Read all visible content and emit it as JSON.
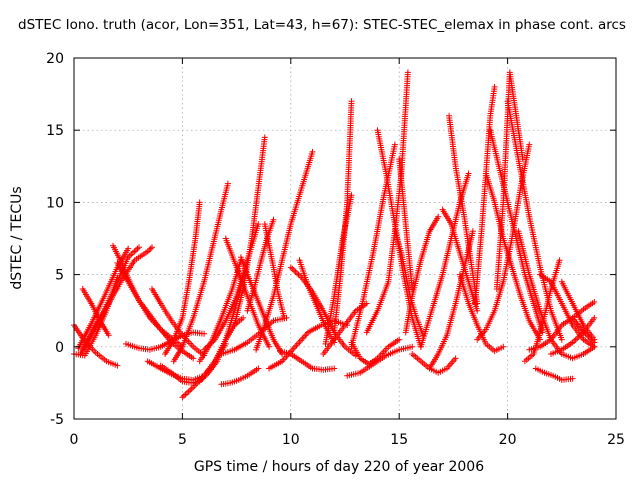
{
  "chart_data": {
    "type": "scatter",
    "title": "dSTEC Iono. truth (acor, Lon=351, Lat=43, h=67): STEC-STEC_elemax in phase cont. arcs",
    "xlabel": "GPS time / hours of day 220 of year 2006",
    "ylabel": "dSTEC  / TECUs",
    "xlim": [
      0,
      25
    ],
    "ylim": [
      -5,
      20
    ],
    "x_ticks": [
      0,
      5,
      10,
      15,
      20,
      25
    ],
    "y_ticks": [
      -5,
      0,
      5,
      10,
      15,
      20
    ],
    "grid": true,
    "marker": "+",
    "color": "#ff0000",
    "arcs": [
      {
        "x": [
          0.0,
          0.5,
          1.0,
          1.5,
          2.0
        ],
        "y": [
          1.5,
          0.4,
          -0.4,
          -1.0,
          -1.3
        ]
      },
      {
        "x": [
          0.0,
          0.5,
          1.0,
          1.5,
          2.0
        ],
        "y": [
          -0.5,
          -0.6,
          0.8,
          2.5,
          4.8
        ]
      },
      {
        "x": [
          0.2,
          0.8,
          1.4,
          2.0,
          2.5
        ],
        "y": [
          -0.1,
          1.6,
          3.5,
          5.5,
          6.8
        ]
      },
      {
        "x": [
          0.3,
          0.8,
          1.4,
          2.0,
          2.5,
          3.0
        ],
        "y": [
          -0.5,
          0.8,
          2.5,
          4.5,
          6.2,
          6.9
        ]
      },
      {
        "x": [
          0.4,
          1.0,
          1.6,
          2.2,
          2.8,
          3.4,
          3.6
        ],
        "y": [
          -0.2,
          1.5,
          3.0,
          4.6,
          6.0,
          6.6,
          6.9
        ]
      },
      {
        "x": [
          0.4,
          0.8,
          1.2,
          1.6
        ],
        "y": [
          4.0,
          3.0,
          1.8,
          0.8
        ]
      },
      {
        "x": [
          1.8,
          2.2,
          2.6,
          3.0,
          3.5,
          4.0,
          4.5,
          5.0,
          5.5
        ],
        "y": [
          7.0,
          5.8,
          4.4,
          3.2,
          2.2,
          1.2,
          0.3,
          -0.3,
          -0.8
        ]
      },
      {
        "x": [
          2.0,
          2.5,
          3.0,
          3.5,
          4.0,
          4.5,
          5.0
        ],
        "y": [
          5.8,
          4.5,
          3.2,
          2.0,
          1.2,
          0.6,
          0.0
        ]
      },
      {
        "x": [
          2.4,
          3.0,
          3.5,
          4.0,
          4.5,
          5.0,
          5.5,
          6.0
        ],
        "y": [
          0.2,
          -0.1,
          -0.2,
          0.0,
          0.4,
          0.8,
          1.0,
          0.9
        ]
      },
      {
        "x": [
          3.6,
          4.0,
          4.5,
          5.0,
          5.5,
          6.0
        ],
        "y": [
          4.0,
          3.0,
          1.8,
          0.8,
          0.0,
          -0.6
        ]
      },
      {
        "x": [
          3.4,
          4.0,
          4.5,
          5.0,
          5.5,
          6.0,
          6.5,
          7.0
        ],
        "y": [
          -1.0,
          -1.5,
          -1.9,
          -2.2,
          -2.3,
          -2.0,
          -1.0,
          0.2
        ]
      },
      {
        "x": [
          4.0,
          4.5,
          5.0,
          5.4,
          5.8,
          6.2,
          6.6,
          7.0,
          7.4,
          7.8
        ],
        "y": [
          -1.3,
          -1.8,
          -2.4,
          -2.5,
          -2.4,
          -1.8,
          -1.0,
          0.5,
          1.5,
          2.0
        ]
      },
      {
        "x": [
          4.2,
          4.6,
          5.0,
          5.3,
          5.6,
          5.8
        ],
        "y": [
          -0.5,
          0.5,
          2.0,
          4.5,
          7.5,
          10.0
        ]
      },
      {
        "x": [
          4.6,
          5.0,
          5.5,
          6.0,
          6.4,
          6.8,
          7.1
        ],
        "y": [
          -1.0,
          0.0,
          2.0,
          4.5,
          7.0,
          9.5,
          11.3
        ]
      },
      {
        "x": [
          5.0,
          5.5,
          6.0,
          6.5,
          7.0,
          7.5,
          8.0
        ],
        "y": [
          -3.5,
          -2.8,
          -2.0,
          -1.0,
          0.5,
          3.0,
          6.0
        ]
      },
      {
        "x": [
          5.8,
          6.3,
          6.8,
          7.3,
          7.7
        ],
        "y": [
          -1.0,
          0.2,
          2.0,
          4.0,
          6.0
        ]
      },
      {
        "x": [
          6.0,
          6.5,
          7.0,
          7.5,
          8.0,
          8.5
        ],
        "y": [
          -0.2,
          0.5,
          1.8,
          3.5,
          6.0,
          8.5
        ]
      },
      {
        "x": [
          6.8,
          7.2,
          7.6,
          8.0,
          8.5
        ],
        "y": [
          -2.6,
          -2.5,
          -2.3,
          -2.0,
          -1.5
        ]
      },
      {
        "x": [
          6.8,
          7.4,
          8.0,
          8.6,
          9.2,
          9.8
        ],
        "y": [
          -0.5,
          -0.2,
          0.3,
          1.0,
          1.8,
          2.0
        ]
      },
      {
        "x": [
          7.0,
          7.5,
          8.0,
          8.5,
          9.0
        ],
        "y": [
          7.5,
          5.5,
          3.5,
          1.5,
          0.0
        ]
      },
      {
        "x": [
          7.4,
          7.8,
          8.2,
          8.5,
          8.8
        ],
        "y": [
          1.5,
          4.0,
          7.5,
          11.0,
          14.5
        ]
      },
      {
        "x": [
          7.7,
          8.0,
          8.4,
          8.8,
          9.2,
          9.6
        ],
        "y": [
          6.2,
          5.0,
          3.5,
          2.0,
          0.5,
          -0.5
        ]
      },
      {
        "x": [
          8.0,
          8.3,
          8.6,
          8.9,
          9.2
        ],
        "y": [
          2.5,
          4.0,
          5.8,
          7.5,
          8.8
        ]
      },
      {
        "x": [
          8.4,
          8.8,
          9.2,
          9.6,
          10.0,
          10.5,
          11.0
        ],
        "y": [
          -0.2,
          1.5,
          3.5,
          6.0,
          8.5,
          11.0,
          13.5
        ]
      },
      {
        "x": [
          8.8,
          9.0,
          9.2,
          9.4,
          9.7
        ],
        "y": [
          8.5,
          7.0,
          5.5,
          3.8,
          2.0
        ]
      },
      {
        "x": [
          9.5,
          10.0,
          10.5,
          11.0,
          11.5,
          12.0
        ],
        "y": [
          -0.3,
          -0.5,
          -1.0,
          -1.5,
          -1.6,
          -1.5
        ]
      },
      {
        "x": [
          9.0,
          9.6,
          10.2,
          10.8,
          11.4,
          12.0,
          12.6
        ],
        "y": [
          -1.5,
          -1.0,
          0.0,
          1.0,
          1.5,
          1.8,
          1.5
        ]
      },
      {
        "x": [
          10.0,
          10.5,
          11.0,
          11.5,
          12.0,
          12.5,
          13.0
        ],
        "y": [
          5.5,
          4.8,
          3.8,
          2.5,
          1.0,
          0.0,
          -0.6
        ]
      },
      {
        "x": [
          10.4,
          10.8,
          11.2,
          11.6,
          12.0
        ],
        "y": [
          6.0,
          4.2,
          2.8,
          1.4,
          0.3
        ]
      },
      {
        "x": [
          11.5,
          12.0,
          12.5,
          13.0,
          13.5
        ],
        "y": [
          -0.5,
          0.5,
          1.5,
          2.5,
          3.0
        ]
      },
      {
        "x": [
          11.6,
          12.0,
          12.4,
          12.8
        ],
        "y": [
          0.2,
          3.5,
          7.5,
          10.5
        ]
      },
      {
        "x": [
          12.0,
          12.3,
          12.6,
          12.8
        ],
        "y": [
          1.0,
          5.0,
          10.0,
          17.0
        ]
      },
      {
        "x": [
          12.8,
          13.2,
          13.6,
          14.0,
          14.5,
          15.0
        ],
        "y": [
          0.3,
          -0.8,
          -1.2,
          -0.8,
          0.0,
          0.5
        ]
      },
      {
        "x": [
          12.6,
          13.2,
          13.8,
          14.4,
          15.0,
          15.6
        ],
        "y": [
          -2.0,
          -1.8,
          -1.2,
          -0.6,
          -0.2,
          0.0
        ]
      },
      {
        "x": [
          12.8,
          13.3,
          13.8,
          14.3,
          14.8
        ],
        "y": [
          0.0,
          3.0,
          6.5,
          10.5,
          14.0
        ]
      },
      {
        "x": [
          13.5,
          14.0,
          14.5,
          14.8,
          15.1,
          15.4
        ],
        "y": [
          1.0,
          2.5,
          4.5,
          8.0,
          12.0,
          19.0
        ]
      },
      {
        "x": [
          14.0,
          14.4,
          14.8,
          15.2,
          15.6,
          16.0
        ],
        "y": [
          15.0,
          12.0,
          8.5,
          5.0,
          2.0,
          0.0
        ]
      },
      {
        "x": [
          14.8,
          15.1,
          15.3,
          15.5,
          15.8,
          16.1
        ],
        "y": [
          8.0,
          6.5,
          5.0,
          3.5,
          2.0,
          0.8
        ]
      },
      {
        "x": [
          15.0,
          15.2,
          15.4,
          15.6
        ],
        "y": [
          13.0,
          10.0,
          7.0,
          4.0
        ]
      },
      {
        "x": [
          15.3,
          15.6,
          16.0,
          16.4,
          16.8
        ],
        "y": [
          1.0,
          3.5,
          6.0,
          8.0,
          9.0
        ]
      },
      {
        "x": [
          15.6,
          16.0,
          16.4,
          16.8,
          17.2,
          17.6
        ],
        "y": [
          -0.5,
          -1.0,
          -1.5,
          -1.8,
          -1.5,
          -0.8
        ]
      },
      {
        "x": [
          16.0,
          16.3,
          16.6,
          17.0,
          17.4,
          17.8,
          18.2
        ],
        "y": [
          0.0,
          1.5,
          3.0,
          5.0,
          7.5,
          10.0,
          12.0
        ]
      },
      {
        "x": [
          16.4,
          16.8,
          17.2,
          17.6,
          18.0,
          18.4
        ],
        "y": [
          -1.5,
          -0.5,
          0.8,
          3.0,
          5.5,
          8.0
        ]
      },
      {
        "x": [
          17.0,
          17.4,
          17.8,
          18.2,
          18.6
        ],
        "y": [
          9.5,
          8.5,
          6.5,
          4.5,
          2.5
        ]
      },
      {
        "x": [
          17.3,
          17.6,
          18.0,
          18.3,
          18.6
        ],
        "y": [
          16.0,
          12.5,
          9.0,
          6.0,
          3.0
        ]
      },
      {
        "x": [
          17.8,
          18.2,
          18.6,
          19.0,
          19.4,
          19.8
        ],
        "y": [
          5.0,
          3.0,
          1.5,
          0.2,
          -0.3,
          0.0
        ]
      },
      {
        "x": [
          18.5,
          18.8,
          19.0,
          19.2,
          19.4
        ],
        "y": [
          3.0,
          8.0,
          12.0,
          16.0,
          18.0
        ]
      },
      {
        "x": [
          18.6,
          19.0,
          19.4,
          19.8,
          20.2,
          20.6,
          21.0
        ],
        "y": [
          0.5,
          1.2,
          2.5,
          4.5,
          7.5,
          11.0,
          14.0
        ]
      },
      {
        "x": [
          19.0,
          19.4,
          19.8,
          20.2,
          20.6,
          21.0,
          21.5
        ],
        "y": [
          12.0,
          10.0,
          7.5,
          5.5,
          3.5,
          1.8,
          0.5
        ]
      },
      {
        "x": [
          19.2,
          19.6,
          20.0,
          20.4,
          20.8,
          21.2,
          21.6
        ],
        "y": [
          15.0,
          12.5,
          10.0,
          7.5,
          5.0,
          3.0,
          1.0
        ]
      },
      {
        "x": [
          19.5,
          19.8,
          20.1,
          20.4,
          20.7
        ],
        "y": [
          4.0,
          10.0,
          19.0,
          16.0,
          13.0
        ]
      },
      {
        "x": [
          20.0,
          20.5,
          21.0,
          21.5,
          22.0,
          22.5
        ],
        "y": [
          17.0,
          13.0,
          9.0,
          5.5,
          2.5,
          0.5
        ]
      },
      {
        "x": [
          20.5,
          21.0,
          21.5,
          22.0,
          22.5,
          23.0,
          23.5,
          24.0
        ],
        "y": [
          8.0,
          5.0,
          2.5,
          0.5,
          -0.5,
          -0.8,
          -0.5,
          0.0
        ]
      },
      {
        "x": [
          20.8,
          21.2,
          21.6,
          22.0,
          22.4
        ],
        "y": [
          -1.0,
          -0.5,
          1.5,
          4.0,
          6.0
        ]
      },
      {
        "x": [
          21.0,
          21.5,
          22.0,
          22.5,
          23.0,
          23.5,
          24.0
        ],
        "y": [
          -0.2,
          0.0,
          0.5,
          1.5,
          2.0,
          2.6,
          3.1
        ]
      },
      {
        "x": [
          21.3,
          21.7,
          22.1,
          22.5,
          23.0
        ],
        "y": [
          -1.5,
          -1.8,
          -2.0,
          -2.3,
          -2.2
        ]
      },
      {
        "x": [
          21.5,
          22.0,
          22.5,
          23.0,
          23.5,
          24.0
        ],
        "y": [
          5.0,
          4.5,
          3.0,
          1.5,
          0.5,
          0.0
        ]
      },
      {
        "x": [
          22.0,
          22.5,
          23.0,
          23.5,
          24.0
        ],
        "y": [
          -0.5,
          -0.2,
          0.3,
          1.0,
          2.0
        ]
      },
      {
        "x": [
          22.5,
          23.0,
          23.5,
          24.0
        ],
        "y": [
          4.5,
          3.0,
          1.5,
          0.5
        ]
      },
      {
        "x": [
          23.0,
          23.4,
          23.8,
          24.0
        ],
        "y": [
          2.0,
          1.2,
          0.6,
          0.3
        ]
      }
    ]
  }
}
